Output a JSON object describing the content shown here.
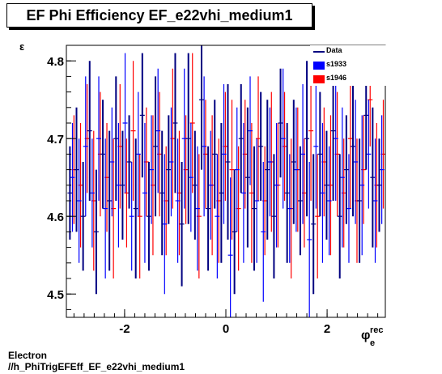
{
  "title": "EF Phi Efficiency EF_e22vhi_medium1",
  "footer": {
    "line1": "Electron",
    "line2": "//h_PhiTrigEFEff_EF_e22vhi_medium1"
  },
  "axis_labels": {
    "y": "ε",
    "x_main": "φ",
    "x_sup": "rec",
    "x_sub": "e"
  },
  "colors": {
    "data": "#000080",
    "s1933": "#0000ff",
    "s1946": "#ff0000"
  },
  "chart_data": {
    "type": "scatter",
    "title": "EF Phi Efficiency EF_e22vhi_medium1",
    "xlabel": "φ_e^rec",
    "ylabel": "ε",
    "xlim": [
      -3.15,
      3.15
    ],
    "ylim": [
      4.47,
      4.82
    ],
    "xticks": [
      -2,
      0,
      2
    ],
    "yticks": [
      4.5,
      4.6,
      4.7,
      4.8
    ],
    "grid": false,
    "legend_position": "top-right",
    "legend": [
      "Data",
      "s1933",
      "s1946"
    ],
    "series": [
      {
        "name": "Data",
        "color": "#000080",
        "x": [
          -3.08,
          -2.95,
          -2.82,
          -2.69,
          -2.56,
          -2.43,
          -2.3,
          -2.17,
          -2.04,
          -1.91,
          -1.78,
          -1.65,
          -1.52,
          -1.39,
          -1.26,
          -1.13,
          -1.0,
          -0.87,
          -0.74,
          -0.61,
          -0.48,
          -0.35,
          -0.22,
          -0.09,
          0.04,
          0.17,
          0.3,
          0.43,
          0.56,
          0.69,
          0.82,
          0.95,
          1.08,
          1.21,
          1.34,
          1.47,
          1.6,
          1.73,
          1.86,
          1.99,
          2.12,
          2.25,
          2.38,
          2.51,
          2.64,
          2.77,
          2.9,
          3.03
        ],
        "y": [
          4.63,
          4.66,
          4.6,
          4.71,
          4.58,
          4.68,
          4.62,
          4.7,
          4.64,
          4.67,
          4.61,
          4.73,
          4.6,
          4.69,
          4.63,
          4.66,
          4.72,
          4.59,
          4.7,
          4.64,
          4.75,
          4.61,
          4.68,
          4.63,
          4.67,
          4.58,
          4.7,
          4.65,
          4.61,
          4.69,
          4.66,
          4.6,
          4.72,
          4.63,
          4.67,
          4.62,
          4.7,
          4.59,
          4.68,
          4.64,
          4.71,
          4.6,
          4.66,
          4.69,
          4.62,
          4.73,
          4.65,
          4.64
        ],
        "err": [
          0.06,
          0.08,
          0.07,
          0.09,
          0.08,
          0.07,
          0.09,
          0.08,
          0.07,
          0.06,
          0.09,
          0.08,
          0.07,
          0.09,
          0.08,
          0.07,
          0.09,
          0.08,
          0.11,
          0.07,
          0.09,
          0.08,
          0.07,
          0.09,
          0.1,
          0.08,
          0.07,
          0.09,
          0.08,
          0.07,
          0.09,
          0.08,
          0.07,
          0.09,
          0.08,
          0.07,
          0.1,
          0.09,
          0.08,
          0.07,
          0.09,
          0.08,
          0.07,
          0.09,
          0.08,
          0.07,
          0.09,
          0.06
        ]
      },
      {
        "name": "s1933",
        "color": "#0000ff",
        "x": [
          -3.03,
          -2.9,
          -2.77,
          -2.64,
          -2.51,
          -2.38,
          -2.25,
          -2.12,
          -1.99,
          -1.86,
          -1.73,
          -1.6,
          -1.47,
          -1.34,
          -1.21,
          -1.08,
          -0.95,
          -0.82,
          -0.69,
          -0.56,
          -0.43,
          -0.3,
          -0.17,
          -0.04,
          0.09,
          0.22,
          0.35,
          0.48,
          0.61,
          0.74,
          0.87,
          1.0,
          1.13,
          1.26,
          1.39,
          1.52,
          1.65,
          1.78,
          1.91,
          2.04,
          2.17,
          2.3,
          2.43,
          2.56,
          2.69,
          2.82,
          2.95,
          3.08
        ],
        "y": [
          4.65,
          4.62,
          4.69,
          4.63,
          4.7,
          4.61,
          4.67,
          4.64,
          4.72,
          4.6,
          4.68,
          4.63,
          4.66,
          4.71,
          4.59,
          4.67,
          4.62,
          4.7,
          4.65,
          4.61,
          4.69,
          4.64,
          4.6,
          4.68,
          4.55,
          4.66,
          4.63,
          4.71,
          4.62,
          4.58,
          4.67,
          4.64,
          4.7,
          4.61,
          4.66,
          4.68,
          4.57,
          4.69,
          4.63,
          4.62,
          4.7,
          4.65,
          4.61,
          4.67,
          4.64,
          4.68,
          4.62,
          4.66
        ],
        "err": [
          0.07,
          0.08,
          0.09,
          0.07,
          0.08,
          0.09,
          0.07,
          0.08,
          0.09,
          0.07,
          0.08,
          0.09,
          0.07,
          0.08,
          0.09,
          0.07,
          0.08,
          0.09,
          0.07,
          0.08,
          0.09,
          0.07,
          0.08,
          0.09,
          0.1,
          0.08,
          0.09,
          0.07,
          0.08,
          0.09,
          0.07,
          0.08,
          0.09,
          0.07,
          0.08,
          0.09,
          0.1,
          0.08,
          0.09,
          0.07,
          0.08,
          0.09,
          0.07,
          0.08,
          0.09,
          0.07,
          0.08,
          0.07
        ]
      },
      {
        "name": "s1946",
        "color": "#ff0000",
        "x": [
          -3.0,
          -2.87,
          -2.74,
          -2.61,
          -2.48,
          -2.35,
          -2.22,
          -2.09,
          -1.96,
          -1.83,
          -1.7,
          -1.57,
          -1.44,
          -1.31,
          -1.18,
          -1.05,
          -0.92,
          -0.79,
          -0.66,
          -0.53,
          -0.4,
          -0.27,
          -0.14,
          -0.01,
          0.12,
          0.25,
          0.38,
          0.51,
          0.64,
          0.77,
          0.9,
          1.03,
          1.16,
          1.29,
          1.42,
          1.55,
          1.68,
          1.81,
          1.94,
          2.07,
          2.2,
          2.33,
          2.46,
          2.59,
          2.72,
          2.85,
          2.98,
          3.11
        ],
        "y": [
          4.66,
          4.64,
          4.7,
          4.62,
          4.68,
          4.65,
          4.61,
          4.69,
          4.63,
          4.71,
          4.6,
          4.67,
          4.64,
          4.68,
          4.62,
          4.7,
          4.63,
          4.66,
          4.72,
          4.6,
          4.68,
          4.64,
          4.62,
          4.69,
          4.66,
          4.61,
          4.68,
          4.63,
          4.7,
          4.62,
          4.67,
          4.64,
          4.69,
          4.61,
          4.66,
          4.63,
          4.71,
          4.6,
          4.67,
          4.64,
          4.68,
          4.63,
          4.7,
          4.62,
          4.66,
          4.75,
          4.64,
          4.68
        ],
        "err": [
          0.07,
          0.08,
          0.07,
          0.09,
          0.08,
          0.07,
          0.09,
          0.08,
          0.07,
          0.09,
          0.08,
          0.07,
          0.09,
          0.08,
          0.07,
          0.09,
          0.08,
          0.07,
          0.09,
          0.08,
          0.07,
          0.09,
          0.08,
          0.07,
          0.09,
          0.08,
          0.07,
          0.09,
          0.08,
          0.07,
          0.09,
          0.08,
          0.07,
          0.09,
          0.08,
          0.07,
          0.09,
          0.08,
          0.07,
          0.09,
          0.08,
          0.07,
          0.09,
          0.08,
          0.07,
          0.06,
          0.08,
          0.07
        ]
      }
    ]
  }
}
